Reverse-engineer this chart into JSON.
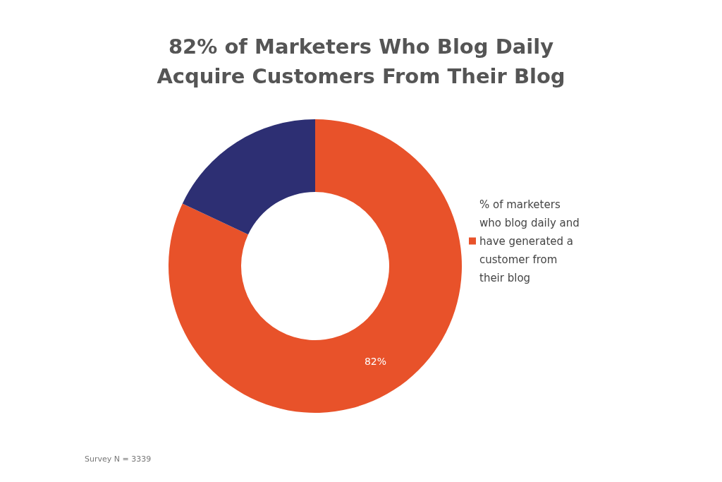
{
  "chart_data": {
    "type": "donut",
    "title": "82% of Marketers Who Blog Daily\nAcquire Customers From Their Blog",
    "categories": [
      "% of marketers who blog daily and have generated a customer from their blog",
      null
    ],
    "values": [
      82,
      18
    ],
    "colors": [
      "#e8522a",
      "#2d2f73"
    ],
    "value_labels": [
      "82%",
      null
    ],
    "legend": "right",
    "annotations": [
      "Survey N = 3339"
    ]
  }
}
